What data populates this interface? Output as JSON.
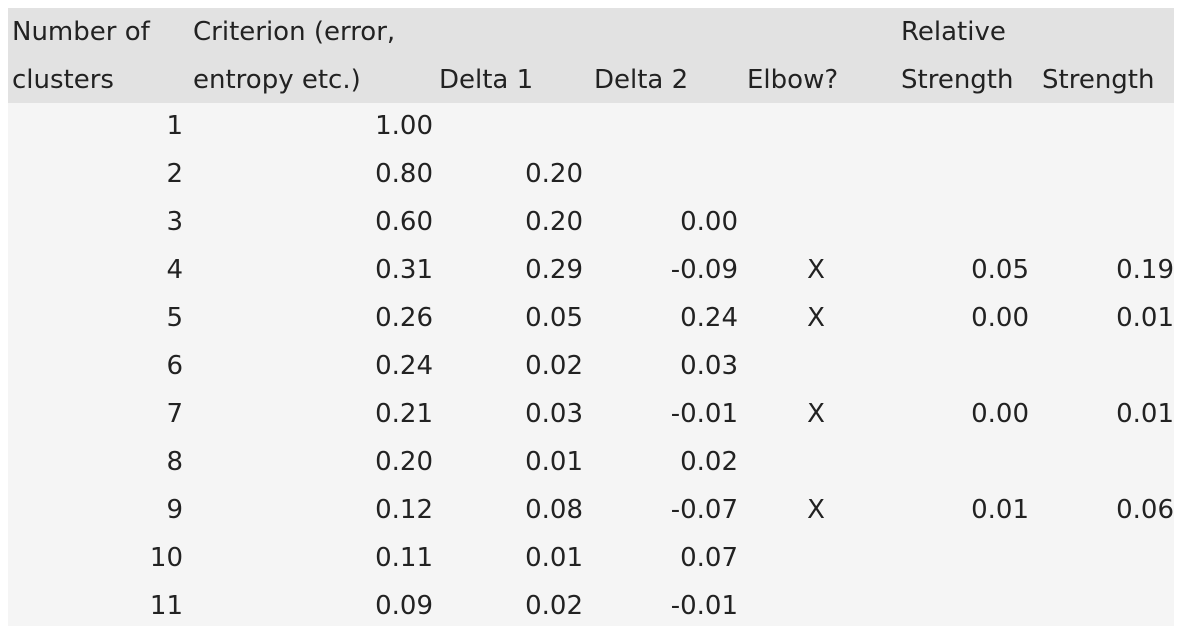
{
  "headers": {
    "clusters": [
      "Number of",
      "clusters"
    ],
    "criterion": [
      "Criterion (error,",
      "entropy etc.)"
    ],
    "delta1": "Delta 1",
    "delta2": "Delta 2",
    "elbow": "Elbow?",
    "relative_strength": [
      "Relative",
      "Strength"
    ],
    "strength": "Strength"
  },
  "rows": [
    {
      "clusters": "1",
      "criterion": "1.00",
      "delta1": "",
      "delta2": "",
      "elbow": "",
      "relative_strength": "",
      "strength": ""
    },
    {
      "clusters": "2",
      "criterion": "0.80",
      "delta1": "0.20",
      "delta2": "",
      "elbow": "",
      "relative_strength": "",
      "strength": ""
    },
    {
      "clusters": "3",
      "criterion": "0.60",
      "delta1": "0.20",
      "delta2": "0.00",
      "elbow": "",
      "relative_strength": "",
      "strength": ""
    },
    {
      "clusters": "4",
      "criterion": "0.31",
      "delta1": "0.29",
      "delta2": "-0.09",
      "elbow": "X",
      "relative_strength": "0.05",
      "strength": "0.19"
    },
    {
      "clusters": "5",
      "criterion": "0.26",
      "delta1": "0.05",
      "delta2": "0.24",
      "elbow": "X",
      "relative_strength": "0.00",
      "strength": "0.01"
    },
    {
      "clusters": "6",
      "criterion": "0.24",
      "delta1": "0.02",
      "delta2": "0.03",
      "elbow": "",
      "relative_strength": "",
      "strength": ""
    },
    {
      "clusters": "7",
      "criterion": "0.21",
      "delta1": "0.03",
      "delta2": "-0.01",
      "elbow": "X",
      "relative_strength": "0.00",
      "strength": "0.01"
    },
    {
      "clusters": "8",
      "criterion": "0.20",
      "delta1": "0.01",
      "delta2": "0.02",
      "elbow": "",
      "relative_strength": "",
      "strength": ""
    },
    {
      "clusters": "9",
      "criterion": "0.12",
      "delta1": "0.08",
      "delta2": "-0.07",
      "elbow": "X",
      "relative_strength": "0.01",
      "strength": "0.06"
    },
    {
      "clusters": "10",
      "criterion": "0.11",
      "delta1": "0.01",
      "delta2": "0.07",
      "elbow": "",
      "relative_strength": "",
      "strength": ""
    },
    {
      "clusters": "11",
      "criterion": "0.09",
      "delta1": "0.02",
      "delta2": "-0.01",
      "elbow": "",
      "relative_strength": "",
      "strength": ""
    }
  ]
}
